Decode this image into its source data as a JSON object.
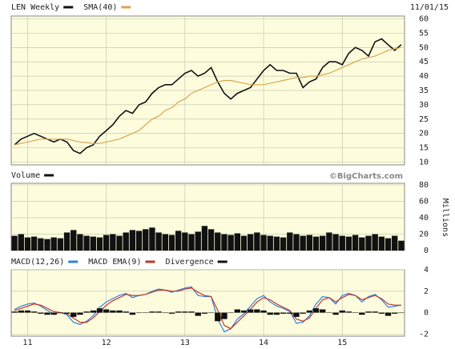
{
  "chart_data": [
    {
      "type": "line",
      "date": "11/01/15",
      "series": [
        {
          "name": "LEN Weekly",
          "color": "#111111",
          "values": [
            16,
            18,
            19,
            20,
            19,
            18,
            17,
            18,
            17,
            14,
            13,
            15,
            16,
            19,
            21,
            23,
            26,
            28,
            27,
            30,
            31,
            34,
            36,
            37,
            37,
            39,
            41,
            42,
            40,
            41,
            43,
            38,
            34,
            32,
            34,
            35,
            36,
            39,
            42,
            44,
            42,
            42,
            41,
            41,
            36,
            38,
            39,
            43,
            45,
            45,
            44,
            48,
            50,
            49,
            47,
            52,
            53,
            51,
            49,
            51
          ]
        },
        {
          "name": "SMA(40)",
          "color": "#d9a54e",
          "values": [
            16,
            16.5,
            17,
            17.5,
            18,
            18,
            18,
            18,
            18,
            17.5,
            17,
            16.8,
            16.5,
            16.5,
            17,
            17.5,
            18,
            19,
            20,
            21,
            23,
            25,
            26,
            28,
            29,
            31,
            32,
            34,
            35,
            36,
            37,
            38,
            38.5,
            38.5,
            38,
            37.5,
            37,
            37,
            37,
            37.5,
            38,
            38.5,
            39,
            39.5,
            39.5,
            40,
            40,
            40.5,
            41,
            42,
            43,
            44,
            45,
            46,
            46.5,
            47,
            48,
            49,
            49.5,
            50
          ]
        }
      ],
      "ylim": [
        9,
        61
      ],
      "yticks": [
        10,
        15,
        20,
        25,
        30,
        35,
        40,
        45,
        50,
        55,
        60
      ],
      "grid": true
    },
    {
      "type": "bar",
      "note_label": "©BigCharts.com",
      "axis_label": "Millions",
      "series": [
        {
          "name": "Volume",
          "color": "#111111",
          "values": [
            18,
            20,
            16,
            17,
            15,
            14,
            16,
            15,
            22,
            25,
            20,
            18,
            17,
            16,
            19,
            20,
            18,
            22,
            25,
            24,
            26,
            28,
            22,
            20,
            19,
            24,
            22,
            20,
            23,
            30,
            26,
            22,
            20,
            19,
            21,
            18,
            20,
            22,
            19,
            18,
            17,
            16,
            22,
            20,
            18,
            19,
            17,
            18,
            22,
            20,
            18,
            17,
            19,
            16,
            18,
            20,
            17,
            15,
            18,
            12
          ]
        }
      ],
      "ylim": [
        0,
        82
      ],
      "yticks": [
        0,
        20,
        40,
        60,
        80
      ],
      "grid": true
    },
    {
      "type": "line",
      "categories": [
        null,
        null,
        "11",
        null,
        null,
        null,
        null,
        null,
        null,
        null,
        null,
        null,
        null,
        null,
        "12",
        null,
        null,
        null,
        null,
        null,
        null,
        null,
        null,
        null,
        null,
        null,
        "13",
        null,
        null,
        null,
        null,
        null,
        null,
        null,
        null,
        null,
        null,
        null,
        "14",
        null,
        null,
        null,
        null,
        null,
        null,
        null,
        null,
        null,
        null,
        null,
        "15",
        null,
        null,
        null,
        null,
        null,
        null,
        null,
        null,
        null
      ],
      "series": [
        {
          "name": "MACD(12,26)",
          "color": "#2f7fe0",
          "values": [
            0.3,
            0.6,
            0.8,
            0.9,
            0.6,
            0.2,
            -0.1,
            0,
            -0.2,
            -0.9,
            -1.1,
            -0.8,
            -0.3,
            0.5,
            1.0,
            1.3,
            1.6,
            1.8,
            1.4,
            1.6,
            1.7,
            2.0,
            2.2,
            2.1,
            1.9,
            2.1,
            2.3,
            2.4,
            1.6,
            1.5,
            1.5,
            -0.6,
            -1.8,
            -1.5,
            -0.6,
            -0.1,
            0.6,
            1.3,
            1.6,
            1.0,
            0.6,
            0.4,
            0.1,
            -1.0,
            -0.9,
            -0.3,
            0.8,
            1.5,
            1.4,
            0.8,
            1.6,
            1.8,
            1.6,
            1.0,
            1.5,
            1.7,
            1.2,
            0.5,
            0.6,
            0.7
          ]
        },
        {
          "name": "MACD EMA(9)",
          "color": "#c0392b",
          "values": [
            0.2,
            0.4,
            0.6,
            0.8,
            0.7,
            0.4,
            0.1,
            0,
            -0.1,
            -0.5,
            -0.9,
            -0.9,
            -0.5,
            0.1,
            0.7,
            1.1,
            1.4,
            1.7,
            1.6,
            1.6,
            1.7,
            1.9,
            2.1,
            2.1,
            2.0,
            2.0,
            2.2,
            2.3,
            1.9,
            1.6,
            1.5,
            0.2,
            -1.2,
            -1.5,
            -0.9,
            -0.3,
            0.3,
            1.0,
            1.4,
            1.2,
            0.8,
            0.5,
            0.2,
            -0.6,
            -0.8,
            -0.5,
            0.4,
            1.2,
            1.4,
            1.0,
            1.4,
            1.7,
            1.6,
            1.2,
            1.4,
            1.6,
            1.3,
            0.8,
            0.7,
            0.7
          ]
        },
        {
          "name": "Divergence",
          "color": "#111111",
          "type": "bar",
          "values": [
            0.1,
            0.2,
            0.2,
            0.1,
            -0.1,
            -0.2,
            -0.2,
            0,
            -0.1,
            -0.4,
            -0.2,
            0.1,
            0.2,
            0.4,
            0.3,
            0.2,
            0.2,
            0.1,
            -0.2,
            0,
            0,
            0.1,
            0.1,
            0,
            -0.1,
            0.1,
            0.1,
            0.1,
            -0.3,
            -0.1,
            0,
            -0.8,
            -0.6,
            0,
            0.3,
            0.2,
            0.3,
            0.3,
            0.2,
            -0.2,
            -0.2,
            -0.1,
            -0.1,
            -0.4,
            -0.1,
            0.2,
            0.4,
            0.3,
            0,
            -0.2,
            0.2,
            0.1,
            0,
            -0.2,
            0.1,
            0.1,
            -0.1,
            -0.3,
            -0.1,
            0
          ]
        }
      ],
      "ylim": [
        -2.2,
        4
      ],
      "yticks": [
        -2,
        0,
        2,
        4
      ],
      "grid": true
    }
  ]
}
